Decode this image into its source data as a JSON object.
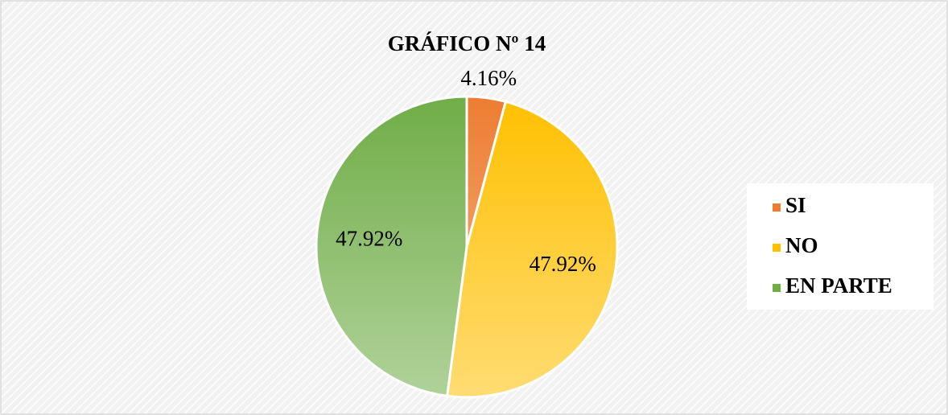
{
  "chart_data": {
    "type": "pie",
    "title": "GRÁFICO Nº 14",
    "categories": [
      "SI",
      "NO",
      "EN PARTE"
    ],
    "values": [
      4.16,
      47.92,
      47.92
    ],
    "value_labels": [
      "4.16%",
      "47.92%",
      "47.92%"
    ],
    "colors": [
      "#ed7d31",
      "#ffc000",
      "#70ad47"
    ],
    "legend": "right"
  }
}
